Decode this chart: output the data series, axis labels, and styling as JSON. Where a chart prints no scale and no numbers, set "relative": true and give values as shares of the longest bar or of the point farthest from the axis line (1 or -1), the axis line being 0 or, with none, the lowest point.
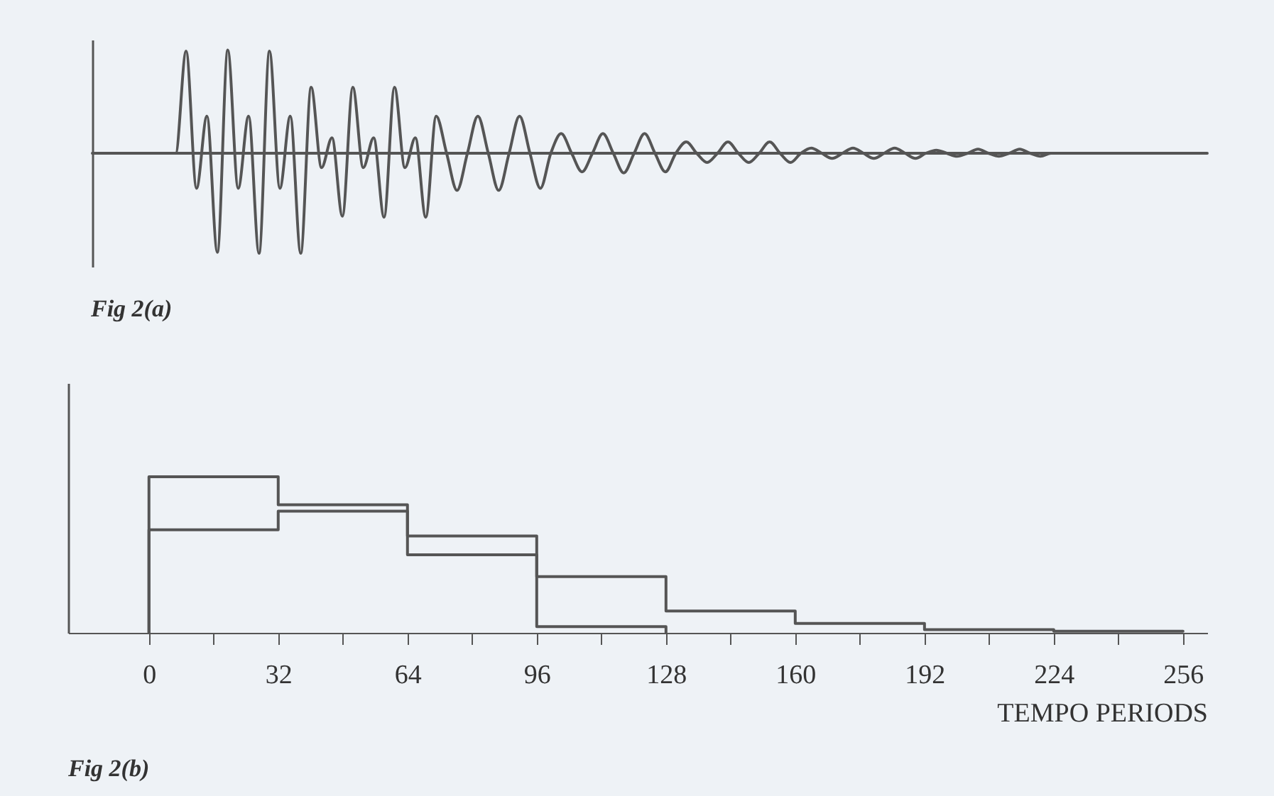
{
  "chart_data": [
    {
      "type": "line",
      "relative": true,
      "annotations": [
        "Fig 2(a)"
      ],
      "categories": [
        null,
        null,
        null,
        null,
        null,
        null,
        null,
        null,
        null,
        null,
        null,
        null,
        null,
        null,
        null,
        null,
        null,
        null,
        null,
        null,
        null,
        null,
        null,
        null,
        null,
        null,
        null,
        null,
        null,
        null,
        null,
        null,
        null,
        null,
        null,
        null,
        null,
        null,
        null,
        null,
        null,
        null,
        null,
        null,
        null,
        null,
        null,
        null,
        null,
        null,
        null,
        null,
        null,
        null,
        null,
        null,
        null,
        null,
        null,
        null,
        null,
        null,
        null,
        null,
        null,
        null,
        null,
        null,
        null,
        null,
        null,
        null,
        null,
        null,
        null,
        null,
        null,
        null,
        null,
        null,
        null,
        null,
        null,
        null,
        null,
        null,
        null,
        null,
        null,
        null,
        null,
        null,
        null,
        null,
        null,
        null,
        null,
        null,
        null,
        null,
        null,
        null,
        null,
        null,
        null,
        null,
        null,
        null
      ],
      "series": [
        {
          "color": "#555555",
          "values": [
            0,
            0,
            0,
            0,
            0,
            0,
            0,
            0,
            0,
            0.99,
            -0.34,
            0.36,
            -0.96,
            1,
            -0.34,
            0.36,
            -0.97,
            0.99,
            -0.34,
            0.36,
            -0.97,
            0.64,
            -0.14,
            0.15,
            -0.61,
            0.64,
            -0.14,
            0.15,
            -0.62,
            0.64,
            -0.14,
            0.15,
            -0.62,
            0.36,
            0,
            -0.36,
            0,
            0.36,
            0,
            -0.36,
            0,
            0.36,
            0,
            -0.34,
            0,
            0.19,
            0,
            -0.18,
            0,
            0.19,
            0,
            -0.19,
            0,
            0.19,
            0,
            -0.18,
            0,
            0.11,
            0,
            -0.09,
            0,
            0.11,
            0,
            -0.09,
            0,
            0.11,
            0,
            -0.09,
            0,
            0.05,
            0,
            -0.05,
            0,
            0.05,
            0,
            -0.05,
            0,
            0.05,
            0,
            -0.05,
            0,
            0.03,
            0,
            -0.03,
            0,
            0.04,
            0,
            -0.03,
            0,
            0.04,
            0,
            -0.03,
            0,
            0,
            0,
            0,
            0,
            0,
            0,
            0,
            0,
            0,
            0,
            0,
            0,
            0,
            0,
            0
          ]
        }
      ]
    },
    {
      "type": "step",
      "relative": true,
      "annotations": [
        "Fig 2(b)"
      ],
      "xlabel": "TEMPO PERIODS",
      "xlim": [
        -20,
        262
      ],
      "xticks": [
        0,
        {
          "value": 16,
          "label": null
        },
        32,
        {
          "value": 48,
          "label": null
        },
        64,
        {
          "value": 80,
          "label": null
        },
        96,
        {
          "value": 112,
          "label": null
        },
        128,
        {
          "value": 144,
          "label": null
        },
        160,
        {
          "value": 176,
          "label": null
        },
        192,
        {
          "value": 208,
          "label": null
        },
        224,
        {
          "value": 240,
          "label": null
        },
        256
      ],
      "series": [
        {
          "color": "#555555",
          "x": [
            0,
            0,
            32,
            64,
            96,
            128
          ],
          "values": [
            0,
            1,
            0.82,
            0.5,
            0.04,
            0
          ]
        },
        {
          "color": "#555555",
          "x": [
            0,
            0,
            32,
            64,
            96,
            128,
            160,
            192,
            224,
            256
          ],
          "values": [
            0,
            0.66,
            0.78,
            0.62,
            0.36,
            0.14,
            0.06,
            0.02,
            0.01,
            0.01
          ]
        }
      ]
    }
  ]
}
